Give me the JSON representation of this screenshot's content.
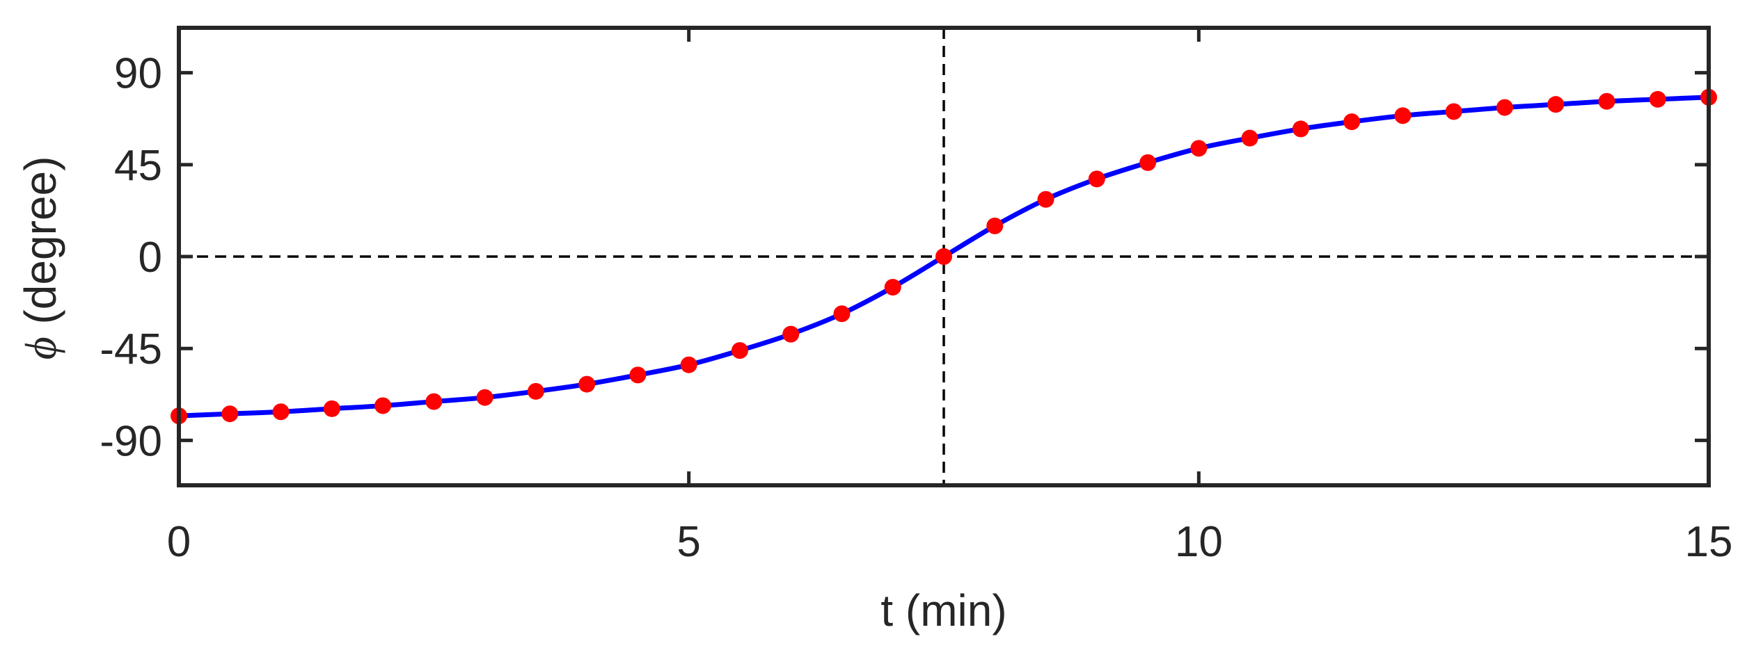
{
  "chart_data": {
    "type": "line",
    "xlabel": "t (min)",
    "ylabel_symbol": "ϕ",
    "ylabel_unit": "(degree)",
    "xlim": [
      0,
      15
    ],
    "ylim": [
      -112,
      112
    ],
    "xticks": [
      "0",
      "5",
      "10",
      "15"
    ],
    "yticks": [
      "90",
      "45",
      "0",
      "-45",
      "-90"
    ],
    "grid": false,
    "reference_lines": {
      "x": 7.5,
      "y": 0
    },
    "colors": {
      "curve": "#0000ff",
      "markers": "#ff0000",
      "axes": "#262626",
      "reference": "#000000"
    },
    "series": [
      {
        "style": "line",
        "x": [
          0,
          0.5,
          1,
          1.5,
          2,
          2.5,
          3,
          3.5,
          4,
          4.5,
          5,
          5.5,
          6,
          6.5,
          7,
          7.5,
          8,
          8.5,
          9,
          9.5,
          10,
          10.5,
          11,
          11.5,
          12,
          12.5,
          13,
          13.5,
          14,
          14.5,
          15
        ],
        "y": [
          -78,
          -77,
          -76,
          -74.5,
          -73,
          -71,
          -69,
          -66,
          -62.5,
          -58,
          -53,
          -46,
          -38,
          -28,
          -15,
          0,
          15,
          28,
          38,
          46,
          53,
          58,
          62.5,
          66,
          69,
          71,
          73,
          74.5,
          76,
          77,
          78
        ]
      },
      {
        "style": "markers",
        "x": [
          0,
          0.5,
          1,
          1.5,
          2,
          2.5,
          3,
          3.5,
          4,
          4.5,
          5,
          5.5,
          6,
          6.5,
          7,
          7.5,
          8,
          8.5,
          9,
          9.5,
          10,
          10.5,
          11,
          11.5,
          12,
          12.5,
          13,
          13.5,
          14,
          14.5,
          15
        ],
        "y": [
          -78,
          -77,
          -76,
          -74.5,
          -73,
          -71,
          -69,
          -66,
          -62.5,
          -58,
          -53,
          -46,
          -38,
          -28,
          -15,
          0,
          15,
          28,
          38,
          46,
          53,
          58,
          62.5,
          66,
          69,
          71,
          73,
          74.5,
          76,
          77,
          78
        ]
      }
    ]
  }
}
